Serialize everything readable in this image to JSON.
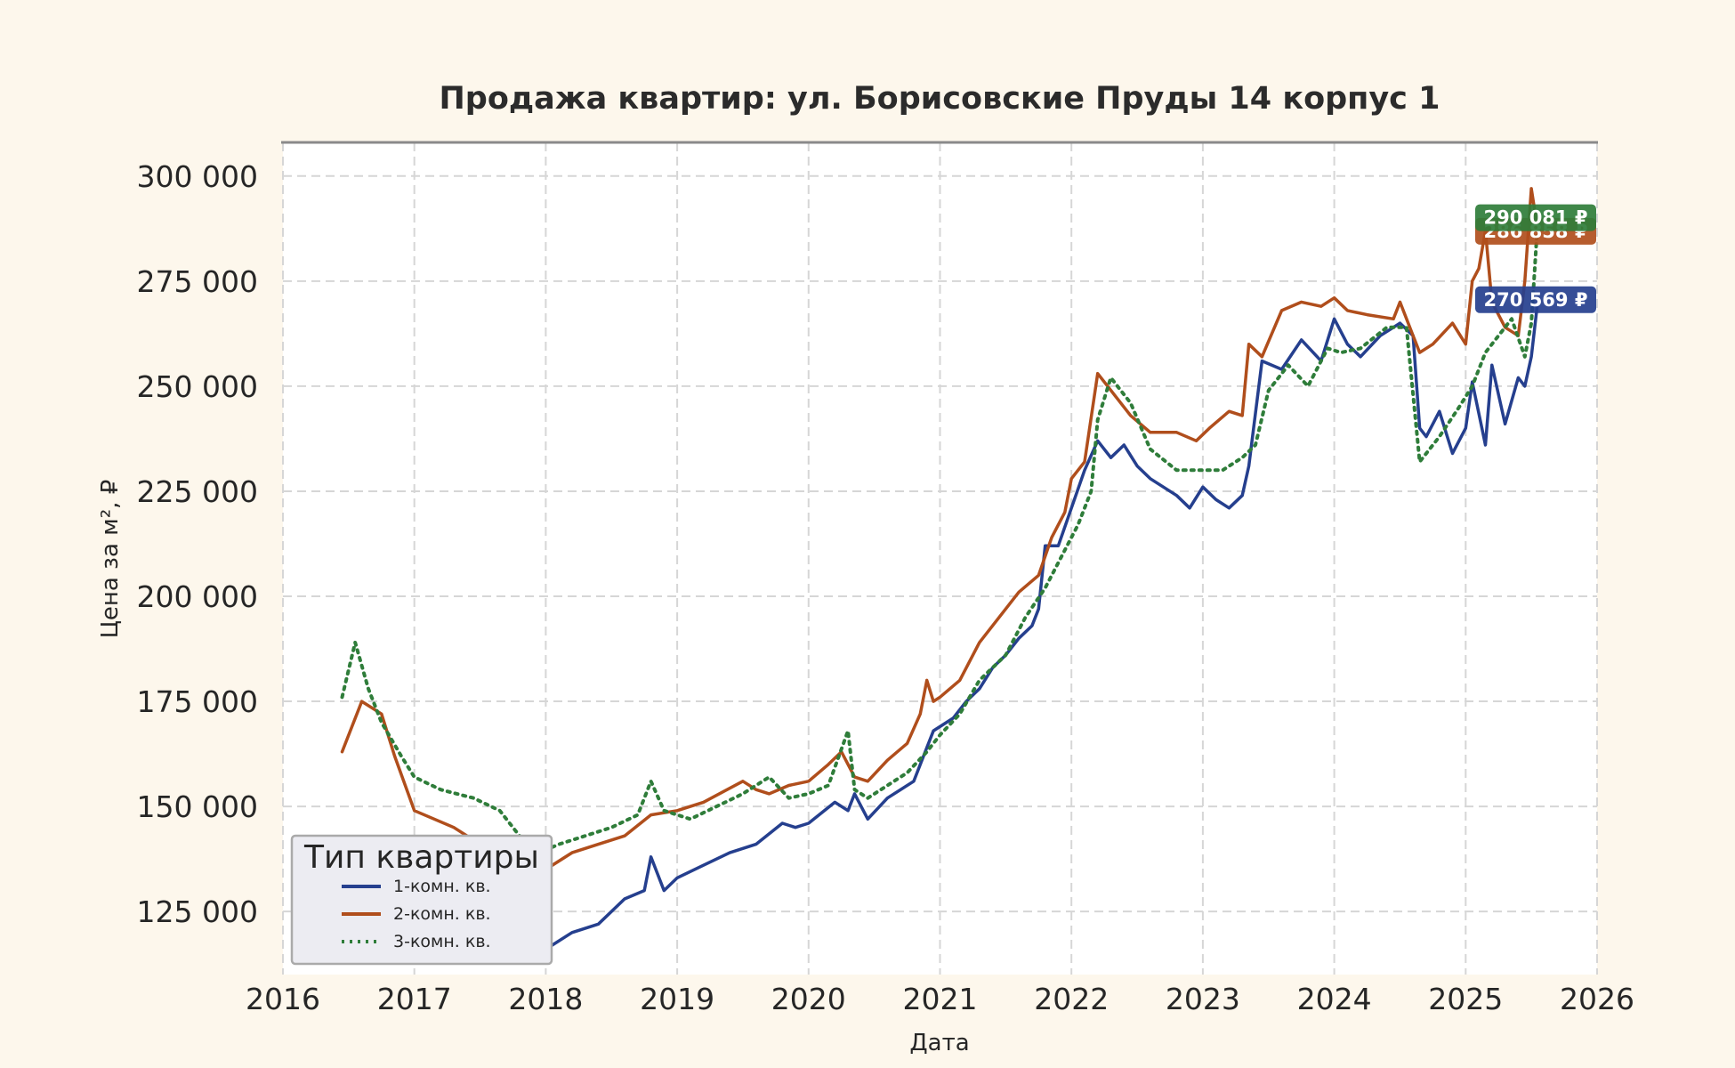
{
  "chart_data": {
    "type": "line",
    "title": "Продажа квартир: ул. Борисовские Пруды 14 корпус 1",
    "xlabel": "Дата",
    "ylabel": "Цена за м², ₽",
    "xlim": [
      2016.0,
      2026.0
    ],
    "ylim": [
      110000,
      308000
    ],
    "x_ticks": [
      2016,
      2017,
      2018,
      2019,
      2020,
      2021,
      2022,
      2023,
      2024,
      2025,
      2026
    ],
    "x_tick_labels": [
      "2016",
      "2017",
      "2018",
      "2019",
      "2020",
      "2021",
      "2022",
      "2023",
      "2024",
      "2025",
      "2026"
    ],
    "y_ticks": [
      125000,
      150000,
      175000,
      200000,
      225000,
      250000,
      275000,
      300000
    ],
    "y_tick_labels": [
      "125 000",
      "150 000",
      "175 000",
      "200 000",
      "225 000",
      "250 000",
      "275 000",
      "300 000"
    ],
    "grid": true,
    "legend": {
      "title": "Тип квартиры",
      "placement": "lower-left"
    },
    "background": "#fdf7ec",
    "plot_background": "#ffffff",
    "series": [
      {
        "name": "1-комн. кв.",
        "color": "#253f8e",
        "style": "solid",
        "end_label": "270 569 ₽",
        "x": [
          2016.45,
          2016.7,
          2017.0,
          2017.3,
          2017.6,
          2017.8,
          2017.95,
          2018.05,
          2018.2,
          2018.4,
          2018.6,
          2018.75,
          2018.8,
          2018.9,
          2019.0,
          2019.2,
          2019.4,
          2019.6,
          2019.8,
          2019.9,
          2020.0,
          2020.2,
          2020.3,
          2020.35,
          2020.45,
          2020.6,
          2020.8,
          2020.9,
          2020.95,
          2021.0,
          2021.1,
          2021.2,
          2021.3,
          2021.4,
          2021.5,
          2021.6,
          2021.7,
          2021.75,
          2021.8,
          2021.9,
          2022.0,
          2022.1,
          2022.2,
          2022.3,
          2022.4,
          2022.5,
          2022.6,
          2022.8,
          2022.9,
          2023.0,
          2023.1,
          2023.2,
          2023.3,
          2023.35,
          2023.45,
          2023.6,
          2023.75,
          2023.9,
          2024.0,
          2024.1,
          2024.2,
          2024.35,
          2024.5,
          2024.6,
          2024.65,
          2024.7,
          2024.8,
          2024.9,
          2025.0,
          2025.05,
          2025.15,
          2025.2,
          2025.3,
          2025.4,
          2025.45,
          2025.5,
          2025.55
        ],
        "y": [
          133000,
          131000,
          129000,
          127000,
          125000,
          123000,
          120000,
          117000,
          120000,
          122000,
          128000,
          130000,
          138000,
          130000,
          133000,
          136000,
          139000,
          141000,
          146000,
          145000,
          146000,
          151000,
          149000,
          153000,
          147000,
          152000,
          156000,
          164000,
          168000,
          169000,
          171000,
          175000,
          178000,
          183000,
          186000,
          190000,
          193000,
          197000,
          212000,
          212000,
          221000,
          230000,
          237000,
          233000,
          236000,
          231000,
          228000,
          224000,
          221000,
          226000,
          223000,
          221000,
          224000,
          231000,
          256000,
          254000,
          261000,
          256000,
          266000,
          260000,
          257000,
          262000,
          265000,
          262000,
          240000,
          238000,
          244000,
          234000,
          240000,
          251000,
          236000,
          255000,
          241000,
          252000,
          250000,
          257000,
          270569
        ]
      },
      {
        "name": "2-комн. кв.",
        "color": "#b04e1c",
        "style": "solid",
        "end_label": "286 858 ₽",
        "x": [
          2016.45,
          2016.6,
          2016.75,
          2016.85,
          2017.0,
          2017.3,
          2017.45,
          2017.6,
          2017.85,
          2018.0,
          2018.2,
          2018.4,
          2018.6,
          2018.8,
          2019.0,
          2019.2,
          2019.5,
          2019.6,
          2019.7,
          2019.85,
          2020.0,
          2020.15,
          2020.25,
          2020.35,
          2020.45,
          2020.6,
          2020.75,
          2020.85,
          2020.9,
          2020.95,
          2021.0,
          2021.15,
          2021.3,
          2021.45,
          2021.6,
          2021.75,
          2021.85,
          2021.95,
          2022.0,
          2022.1,
          2022.2,
          2022.3,
          2022.45,
          2022.6,
          2022.8,
          2022.95,
          2023.05,
          2023.2,
          2023.3,
          2023.35,
          2023.45,
          2023.6,
          2023.75,
          2023.9,
          2024.0,
          2024.1,
          2024.25,
          2024.45,
          2024.5,
          2024.6,
          2024.65,
          2024.75,
          2024.9,
          2025.0,
          2025.05,
          2025.1,
          2025.15,
          2025.2,
          2025.3,
          2025.4,
          2025.45,
          2025.5,
          2025.55
        ],
        "y": [
          163000,
          175000,
          172000,
          162000,
          149000,
          145000,
          142000,
          140000,
          138000,
          135000,
          139000,
          141000,
          143000,
          148000,
          149000,
          151000,
          156000,
          154000,
          153000,
          155000,
          156000,
          160000,
          163000,
          157000,
          156000,
          161000,
          165000,
          172000,
          180000,
          175000,
          176000,
          180000,
          189000,
          195000,
          201000,
          205000,
          214000,
          220000,
          228000,
          232000,
          253000,
          249000,
          243000,
          239000,
          239000,
          237000,
          240000,
          244000,
          243000,
          260000,
          257000,
          268000,
          270000,
          269000,
          271000,
          268000,
          267000,
          266000,
          270000,
          262000,
          258000,
          260000,
          265000,
          260000,
          275000,
          278000,
          287000,
          270000,
          264000,
          262000,
          275000,
          297000,
          286858
        ]
      },
      {
        "name": "3-комн. кв.",
        "color": "#2f7d3a",
        "style": "dotted",
        "end_label": "290 081 ₽",
        "x": [
          2016.45,
          2016.55,
          2016.65,
          2016.75,
          2016.9,
          2017.0,
          2017.2,
          2017.45,
          2017.65,
          2017.8,
          2017.95,
          2018.1,
          2018.3,
          2018.5,
          2018.7,
          2018.8,
          2018.9,
          2019.1,
          2019.3,
          2019.5,
          2019.7,
          2019.85,
          2020.0,
          2020.15,
          2020.3,
          2020.35,
          2020.45,
          2020.6,
          2020.75,
          2020.9,
          2021.0,
          2021.15,
          2021.3,
          2021.5,
          2021.65,
          2021.8,
          2021.95,
          2022.05,
          2022.15,
          2022.2,
          2022.3,
          2022.45,
          2022.6,
          2022.8,
          2023.0,
          2023.15,
          2023.3,
          2023.4,
          2023.5,
          2023.65,
          2023.8,
          2023.95,
          2024.05,
          2024.2,
          2024.4,
          2024.55,
          2024.65,
          2024.8,
          2024.95,
          2025.05,
          2025.15,
          2025.25,
          2025.35,
          2025.45,
          2025.5,
          2025.55
        ],
        "y": [
          176000,
          189000,
          178000,
          170000,
          162000,
          157000,
          154000,
          152000,
          149000,
          143000,
          139000,
          141000,
          143000,
          145000,
          148000,
          156000,
          149000,
          147000,
          150000,
          153000,
          157000,
          152000,
          153000,
          155000,
          168000,
          154000,
          152000,
          155000,
          158000,
          163000,
          167000,
          172000,
          180000,
          186000,
          195000,
          202000,
          211000,
          217000,
          225000,
          242000,
          252000,
          246000,
          235000,
          230000,
          230000,
          230000,
          233000,
          236000,
          249000,
          255000,
          250000,
          259000,
          258000,
          259000,
          264000,
          264000,
          232000,
          238000,
          245000,
          250000,
          258000,
          262000,
          266000,
          257000,
          265000,
          290081
        ]
      }
    ]
  }
}
